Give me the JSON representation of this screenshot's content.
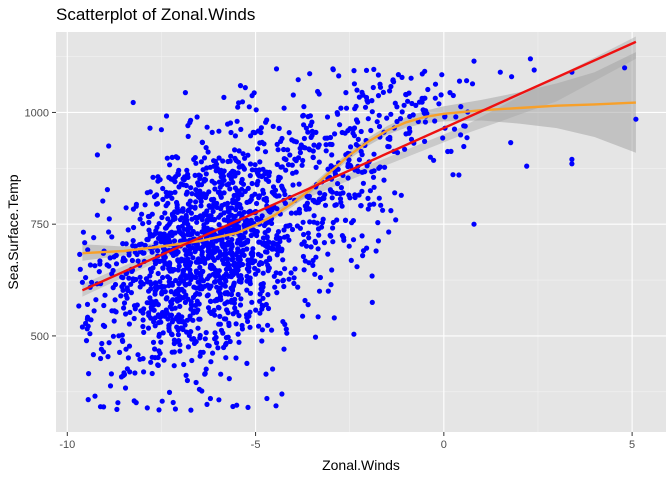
{
  "chart_data": {
    "type": "scatter",
    "title": "Scatterplot of Zonal.Winds",
    "xlabel": "Zonal.Winds",
    "ylabel": "Sea.Surface.Temp",
    "xlim": [
      -10.3,
      5.9
    ],
    "ylim": [
      285,
      1180
    ],
    "x_ticks": [
      -10,
      -5,
      0,
      5
    ],
    "x_tick_labels": [
      "-10",
      "-5",
      "0",
      "5"
    ],
    "y_ticks": [
      500,
      750,
      1000
    ],
    "y_tick_labels": [
      "500",
      "750",
      "1000"
    ],
    "grid": true,
    "legend": "none",
    "colors": {
      "panel": "#e5e5e5",
      "grid_major": "#ffffff",
      "points": "#0000ff",
      "linear_fit": "#ee1111",
      "loess_fit": "#f7a02a",
      "confidence_band": "#a6a6a6"
    },
    "point_cloud_description_values": {
      "center_x": -5.8,
      "center_y": 740,
      "n_points": 1800
    },
    "outlier_points": [
      {
        "x": 5.1,
        "y": 985
      },
      {
        "x": 4.8,
        "y": 1100
      },
      {
        "x": 3.4,
        "y": 885
      },
      {
        "x": 3.4,
        "y": 895
      },
      {
        "x": 3.4,
        "y": 1090
      },
      {
        "x": 2.3,
        "y": 1120
      },
      {
        "x": 2.4,
        "y": 1095
      },
      {
        "x": 2.2,
        "y": 880
      },
      {
        "x": 1.8,
        "y": 1080
      },
      {
        "x": 1.5,
        "y": 1090
      },
      {
        "x": 0.8,
        "y": 750
      },
      {
        "x": 0.4,
        "y": 860
      },
      {
        "x": 0.8,
        "y": 1115
      },
      {
        "x": -1.0,
        "y": 1040
      },
      {
        "x": -1.8,
        "y": 690
      },
      {
        "x": -1.9,
        "y": 575
      },
      {
        "x": -4.3,
        "y": 370
      },
      {
        "x": -4.7,
        "y": 360
      },
      {
        "x": -5.2,
        "y": 340
      },
      {
        "x": -5.5,
        "y": 345
      },
      {
        "x": -6.2,
        "y": 360
      },
      {
        "x": -9.6,
        "y": 620
      },
      {
        "x": -9.6,
        "y": 520
      },
      {
        "x": -9.4,
        "y": 505
      },
      {
        "x": -9.2,
        "y": 905
      },
      {
        "x": -8.9,
        "y": 925
      },
      {
        "x": -9.3,
        "y": 720
      },
      {
        "x": -9.2,
        "y": 770
      }
    ],
    "linear_fit": {
      "x": [
        -9.6,
        5.1
      ],
      "y": [
        602,
        1158
      ]
    },
    "loess_fit": {
      "x": [
        -9.6,
        -8.5,
        -7.5,
        -6.5,
        -5.5,
        -5.0,
        -4.5,
        -4.0,
        -3.5,
        -3.0,
        -2.5,
        -2.0,
        -1.5,
        -1.0,
        -0.5,
        0.0,
        1.0,
        2.0,
        3.0,
        4.0,
        5.1
      ],
      "y": [
        685,
        690,
        700,
        712,
        730,
        748,
        770,
        798,
        830,
        868,
        905,
        935,
        960,
        978,
        990,
        997,
        1005,
        1010,
        1015,
        1018,
        1022
      ]
    },
    "linear_band": {
      "x": [
        -9.6,
        -7.0,
        -4.5,
        -2.0,
        0.5,
        3.0,
        5.1
      ],
      "lower": [
        588,
        690,
        778,
        866,
        950,
        1025,
        1120
      ],
      "upper": [
        616,
        712,
        792,
        882,
        968,
        1080,
        1170
      ]
    },
    "loess_band": {
      "x": [
        -9.6,
        -8.5,
        -7.5,
        -6.5,
        -5.5,
        -5.0,
        -4.5,
        -4.0,
        -3.5,
        -3.0,
        -2.5,
        -2.0,
        -1.5,
        -1.0,
        -0.5,
        0.0,
        1.0,
        2.0,
        3.0,
        4.0,
        5.1
      ],
      "lower": [
        668,
        680,
        692,
        705,
        722,
        740,
        762,
        790,
        822,
        860,
        896,
        926,
        950,
        966,
        976,
        980,
        982,
        975,
        965,
        945,
        910
      ],
      "upper": [
        705,
        700,
        709,
        720,
        738,
        757,
        779,
        806,
        838,
        876,
        914,
        944,
        970,
        990,
        1004,
        1014,
        1028,
        1045,
        1065,
        1090,
        1135
      ]
    }
  }
}
